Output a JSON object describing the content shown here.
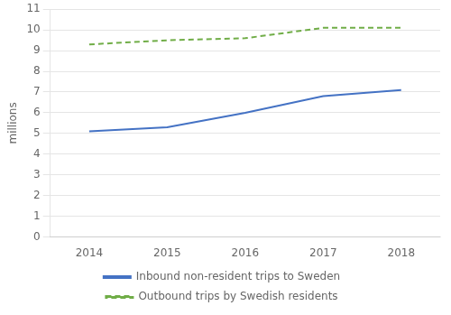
{
  "chart_data": {
    "type": "line",
    "ylabel": "millions",
    "x": [
      2014,
      2015,
      2016,
      2017,
      2018
    ],
    "series": [
      {
        "name": "Inbound non-resident trips to Sweden",
        "color": "#4472C4",
        "line_style": "solid",
        "values": [
          5.1,
          5.3,
          6.0,
          6.8,
          7.1
        ]
      },
      {
        "name": "Outbound trips by Swedish residents",
        "color": "#70AD47",
        "line_style": "dashed",
        "values": [
          9.3,
          9.5,
          9.6,
          10.1,
          10.1
        ]
      }
    ],
    "xlim": [
      2013.5,
      2018.5
    ],
    "xticks": [
      2014,
      2015,
      2016,
      2017,
      2018
    ],
    "ylim": [
      0,
      11
    ],
    "yticks": [
      0,
      1,
      2,
      3,
      4,
      5,
      6,
      7,
      8,
      9,
      10,
      11
    ],
    "grid": "y",
    "legend": "bottom"
  }
}
